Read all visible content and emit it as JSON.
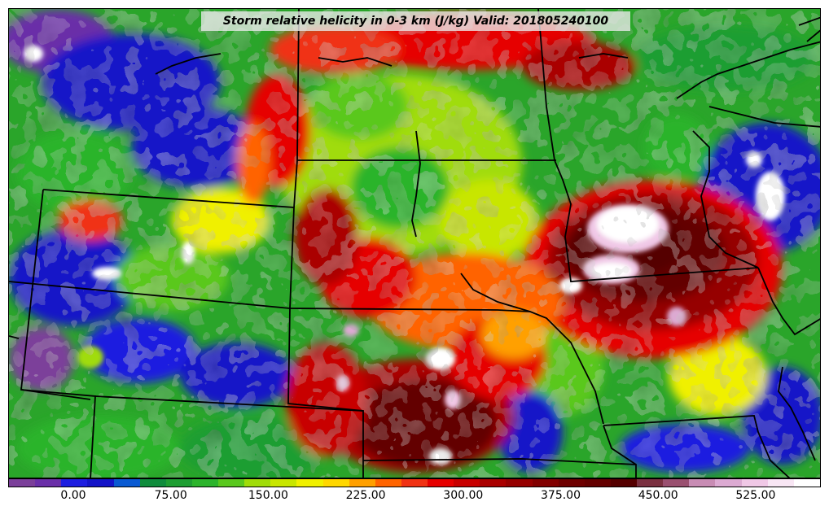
{
  "title": "Storm relative helicity in 0-3 km (J/kg) Valid: 201805240100",
  "colorbar": {
    "colors": [
      "#7b3f9a",
      "#6a2fa8",
      "#1e1ee0",
      "#1414c8",
      "#0a5ad2",
      "#0f8c3c",
      "#1e9e32",
      "#2cb42c",
      "#5ac81e",
      "#a0dc0a",
      "#c8e600",
      "#f0f000",
      "#ffd700",
      "#ffa000",
      "#ff6400",
      "#f03214",
      "#e60000",
      "#c80000",
      "#aa0000",
      "#960000",
      "#820000",
      "#6e0000",
      "#640000",
      "#550000",
      "#7a3040",
      "#9a5070",
      "#c88cb4",
      "#dcaad2",
      "#f0c8e6",
      "#f8e6f4",
      "#ffffff"
    ],
    "tick_labels": [
      "0.00",
      "75.00",
      "150.00",
      "225.00",
      "300.00",
      "375.00",
      "450.00",
      "525.00"
    ]
  }
}
